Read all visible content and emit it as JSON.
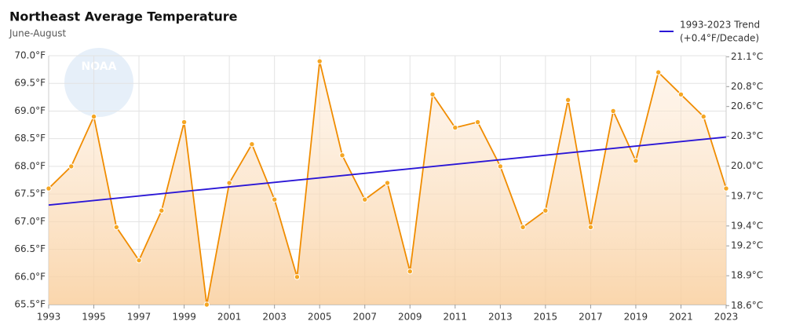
{
  "chart_data": {
    "type": "line",
    "title": "Northeast Average Temperature",
    "subtitle": "June-August",
    "logo_text": "NOAA",
    "series": [
      {
        "name": "Average Temperature",
        "color": "#f08c00",
        "area": true,
        "x": [
          1993,
          1994,
          1995,
          1996,
          1997,
          1998,
          1999,
          2000,
          2001,
          2002,
          2003,
          2004,
          2005,
          2006,
          2007,
          2008,
          2009,
          2010,
          2011,
          2012,
          2013,
          2014,
          2015,
          2016,
          2017,
          2018,
          2019,
          2020,
          2021,
          2022,
          2023
        ],
        "values": [
          67.6,
          68.0,
          68.9,
          66.9,
          66.3,
          67.2,
          68.8,
          65.5,
          67.7,
          68.4,
          67.4,
          66.0,
          69.9,
          68.2,
          67.4,
          67.7,
          66.1,
          69.3,
          68.7,
          68.8,
          68.0,
          66.9,
          67.2,
          69.2,
          66.9,
          69.0,
          68.1,
          69.7,
          69.3,
          68.9,
          67.6
        ]
      },
      {
        "name": "1993-2023 Trend",
        "note": "(+0.4°F/Decade)",
        "color": "#2a16d6",
        "legend": true,
        "x": [
          1993,
          2023
        ],
        "values": [
          67.3,
          68.53
        ]
      }
    ],
    "xlim": [
      1993,
      2023
    ],
    "xticks": [
      1993,
      1995,
      1997,
      1999,
      2001,
      2003,
      2005,
      2007,
      2009,
      2011,
      2013,
      2015,
      2017,
      2019,
      2021,
      2023
    ],
    "ylim": [
      65.5,
      70.0
    ],
    "yticks": [
      {
        "value": 65.5,
        "label": "65.5°F"
      },
      {
        "value": 66.0,
        "label": "66.0°F"
      },
      {
        "value": 66.5,
        "label": "66.5°F"
      },
      {
        "value": 67.0,
        "label": "67.0°F"
      },
      {
        "value": 67.5,
        "label": "67.5°F"
      },
      {
        "value": 68.0,
        "label": "68.0°F"
      },
      {
        "value": 68.5,
        "label": "68.5°F"
      },
      {
        "value": 69.0,
        "label": "69.0°F"
      },
      {
        "value": 69.5,
        "label": "69.5°F"
      },
      {
        "value": 70.0,
        "label": "70.0°F"
      }
    ],
    "y2lim": [
      18.61,
      21.11
    ],
    "y2ticks": [
      {
        "value": 18.6,
        "label": "18.6°C"
      },
      {
        "value": 18.9,
        "label": "18.9°C"
      },
      {
        "value": 19.2,
        "label": "19.2°C"
      },
      {
        "value": 19.4,
        "label": "19.4°C"
      },
      {
        "value": 19.7,
        "label": "19.7°C"
      },
      {
        "value": 20.0,
        "label": "20.0°C"
      },
      {
        "value": 20.3,
        "label": "20.3°C"
      },
      {
        "value": 20.6,
        "label": "20.6°C"
      },
      {
        "value": 20.8,
        "label": "20.8°C"
      },
      {
        "value": 21.1,
        "label": "21.1°C"
      }
    ],
    "grid": true
  }
}
